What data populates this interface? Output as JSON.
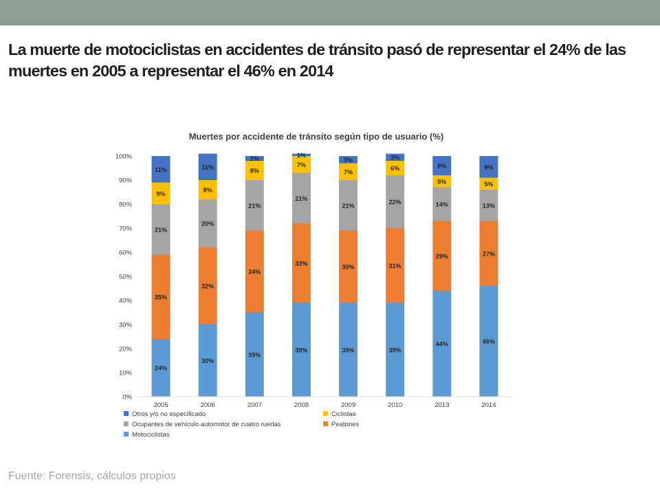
{
  "slide": {
    "title": "La muerte de motociclistas en accidentes de tránsito pasó de representar el 24% de las muertes en 2005 a representar el 46% en 2014",
    "source": "Fuente: Forensis, cálculos propios"
  },
  "colors": {
    "top_bar": "#8c9d94",
    "title_text": "#1f1f1f",
    "footer_text": "#a6a6a6",
    "Motociclistas": "#5b9bd5",
    "Peatones": "#ed7d31",
    "Ocupantes": "#a5a5a5",
    "Ciclistas": "#ffc000",
    "Otros": "#4472c4"
  },
  "chart_data": {
    "type": "bar",
    "stacked": true,
    "title": "Muertes por accidente de tránsito según tipo de usuario (%)",
    "categories": [
      "2005",
      "2006",
      "2007",
      "2008",
      "2009",
      "2010",
      "2013",
      "2014"
    ],
    "ylim": [
      0,
      100
    ],
    "yticks": [
      "0%",
      "10%",
      "20%",
      "30%",
      "40%",
      "50%",
      "60%",
      "70%",
      "80%",
      "90%",
      "100%"
    ],
    "grid": false,
    "legend_position": "bottom",
    "series": [
      {
        "name": "Motociclistas",
        "values": [
          24,
          30,
          35,
          39,
          39,
          39,
          44,
          46
        ],
        "labels": [
          "24%",
          "30%",
          "35%",
          "39%",
          "39%",
          "39%",
          "44%",
          "46%"
        ]
      },
      {
        "name": "Peatones",
        "values": [
          35,
          32,
          34,
          33,
          30,
          31,
          29,
          27
        ],
        "labels": [
          "35%",
          "32%",
          "34%",
          "33%",
          "30%",
          "31%",
          "29%",
          "27%"
        ]
      },
      {
        "name": "Ocupantes de vehículo automotor de cuatro ruedas",
        "values": [
          21,
          20,
          21,
          21,
          21,
          22,
          14,
          13
        ],
        "labels": [
          "21%",
          "20%",
          "21%",
          "21%",
          "21%",
          "22%",
          "14%",
          "13%"
        ]
      },
      {
        "name": "Ciclistas",
        "values": [
          9,
          8,
          8,
          7,
          7,
          6,
          5,
          5
        ],
        "labels": [
          "9%",
          "8%",
          "8%",
          "7%",
          "7%",
          "6%",
          "5%",
          "5%"
        ]
      },
      {
        "name": "Otros y/o no especificado",
        "values": [
          11,
          11,
          2,
          1,
          3,
          3,
          8,
          9
        ],
        "labels": [
          "11%",
          "11%",
          "2%",
          "1%",
          "3%",
          "3%",
          "8%",
          "9%"
        ]
      }
    ],
    "legend_order": [
      "Otros y/o no especificado",
      "Ciclistas",
      "Ocupantes de vehículo automotor de cuatro ruedas",
      "Peatones",
      "Motociclistas"
    ]
  }
}
